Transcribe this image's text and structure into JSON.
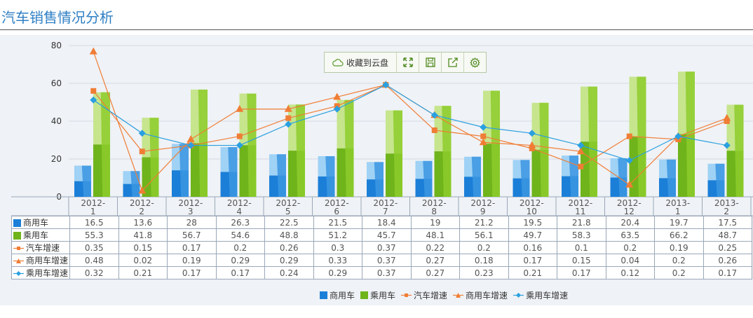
{
  "page": {
    "title": "汽车销售情况分析"
  },
  "toolbar": {
    "save_cloud_label": "收藏到云盘"
  },
  "colors": {
    "commercial": "#1b7fd8",
    "passenger": "#6fb41b",
    "auto_growth": "#f07d35",
    "commercial_growth": "#f07d35",
    "passenger_growth": "#2aa0e0",
    "grid": "#d7dde5"
  },
  "chart_data": {
    "type": "bar",
    "categories": [
      "2012-1",
      "2012-2",
      "2012-3",
      "2012-4",
      "2012-5",
      "2012-6",
      "2012-7",
      "2012-8",
      "2012-9",
      "2012-10",
      "2012-11",
      "2012-12",
      "2013-1",
      "2013-2"
    ],
    "ylim": [
      0,
      80
    ],
    "yticks": [
      0,
      20,
      40,
      60,
      80
    ],
    "grid": true,
    "legend_position": "bottom",
    "series": [
      {
        "name": "商用车",
        "type": "bar",
        "color": "#1b7fd8",
        "values": [
          16.5,
          13.6,
          28,
          26.3,
          22.5,
          21.5,
          18.4,
          19,
          21.2,
          19.5,
          21.8,
          20.4,
          19.7,
          17.5
        ]
      },
      {
        "name": "乘用车",
        "type": "bar",
        "color": "#6fb41b",
        "values": [
          55.3,
          41.8,
          56.7,
          54.6,
          48.8,
          51.2,
          45.7,
          48.1,
          56.1,
          49.7,
          58.3,
          63.5,
          66.2,
          48.7
        ]
      },
      {
        "name": "汽车增速",
        "type": "line",
        "marker": "square",
        "color": "#f07d35",
        "values": [
          0.35,
          0.15,
          0.17,
          0.2,
          0.26,
          0.3,
          0.37,
          0.22,
          0.2,
          0.16,
          0.1,
          0.2,
          0.19,
          0.25
        ]
      },
      {
        "name": "商用车增速",
        "type": "line",
        "marker": "triangle",
        "color": "#f07d35",
        "values": [
          0.48,
          0.02,
          0.19,
          0.29,
          0.29,
          0.33,
          0.37,
          0.27,
          0.18,
          0.17,
          0.15,
          0.04,
          0.2,
          0.26
        ]
      },
      {
        "name": "乘用车增速",
        "type": "line",
        "marker": "diamond",
        "color": "#2aa0e0",
        "values": [
          0.32,
          0.21,
          0.17,
          0.17,
          0.24,
          0.29,
          0.37,
          0.27,
          0.23,
          0.21,
          0.17,
          0.12,
          0.2,
          0.17
        ]
      }
    ]
  }
}
